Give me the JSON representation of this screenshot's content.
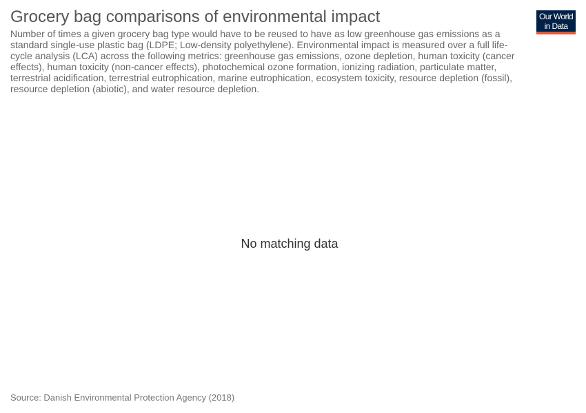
{
  "title": "Grocery bag comparisons of environmental impact",
  "subtitle": "Number of times a given grocery bag type would have to be reused to have as low greenhouse gas emissions as a standard single-use plastic bag (LDPE; Low-density polyethylene). Environmental impact is measured over a full life-cycle analysis (LCA) across the following metrics: greenhouse gas emissions, ozone depletion, human toxicity (cancer effects), human toxicity (non-cancer effects), photochemical ozone formation, ionizing radiation, particulate matter, terrestrial acidification, terrestrial eutrophication, marine eutrophication, ecosystem toxicity, resource depletion (fossil), resource depletion (abiotic), and water resource depletion.",
  "logo": {
    "line1": "Our World",
    "line2": "in Data",
    "background_color": "#002147",
    "accent_color": "#e15a3c"
  },
  "chart_data": {
    "type": "bar",
    "title": "Grocery bag comparisons of environmental impact",
    "categories": [],
    "values": [],
    "message": "No matching data"
  },
  "source": "Source: Danish Environmental Protection Agency (2018)"
}
